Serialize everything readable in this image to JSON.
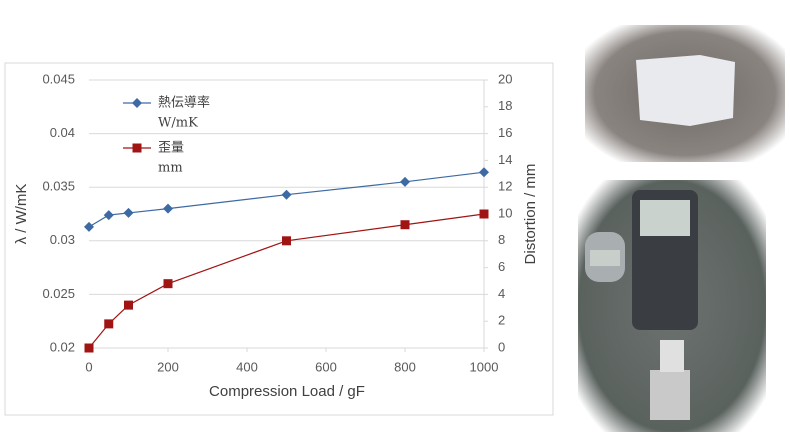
{
  "chart_data": {
    "type": "line",
    "x": [
      0,
      50,
      100,
      200,
      500,
      800,
      1000
    ],
    "xlabel": "Compression Load / gF",
    "ylabel": "λ / W/mK",
    "y2label": "Distortion / mm",
    "xlim": [
      0,
      1000
    ],
    "xticks": [
      0,
      200,
      400,
      600,
      800,
      1000
    ],
    "ylim": [
      0.02,
      0.045
    ],
    "yticks": [
      0.02,
      0.025,
      0.03,
      0.035,
      0.04,
      0.045
    ],
    "y2lim": [
      0,
      20
    ],
    "y2ticks": [
      0,
      2,
      4,
      6,
      8,
      10,
      12,
      14,
      16,
      18,
      20
    ],
    "grid": true,
    "series": [
      {
        "name": "熱伝導率",
        "unit": "W/mK",
        "color": "#3d6aa3",
        "marker": "diamond",
        "values": [
          0.0313,
          0.0324,
          0.0326,
          0.033,
          0.0343,
          0.0355,
          0.0364
        ]
      },
      {
        "name": "歪量",
        "unit": "mm",
        "color": "#a01414",
        "marker": "square",
        "axis": "y2",
        "values": [
          0,
          1.8,
          3.2,
          4.8,
          8.0,
          9.2,
          10.0
        ]
      }
    ]
  }
}
